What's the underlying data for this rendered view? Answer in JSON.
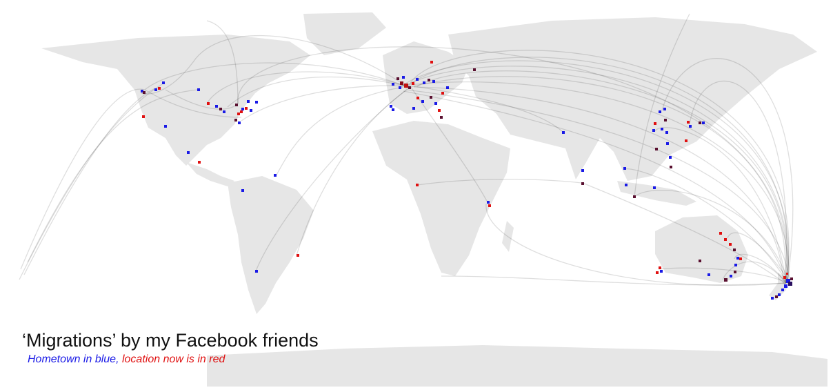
{
  "title": "‘Migrations’ by my Facebook friends",
  "subtitle": {
    "hometown": "Hometown in blue,",
    "location": "location now is in red"
  },
  "colors": {
    "hometown": "#1a1ae6",
    "location": "#e01010",
    "land": "#e6e6e6",
    "arc": "#000000"
  }
}
